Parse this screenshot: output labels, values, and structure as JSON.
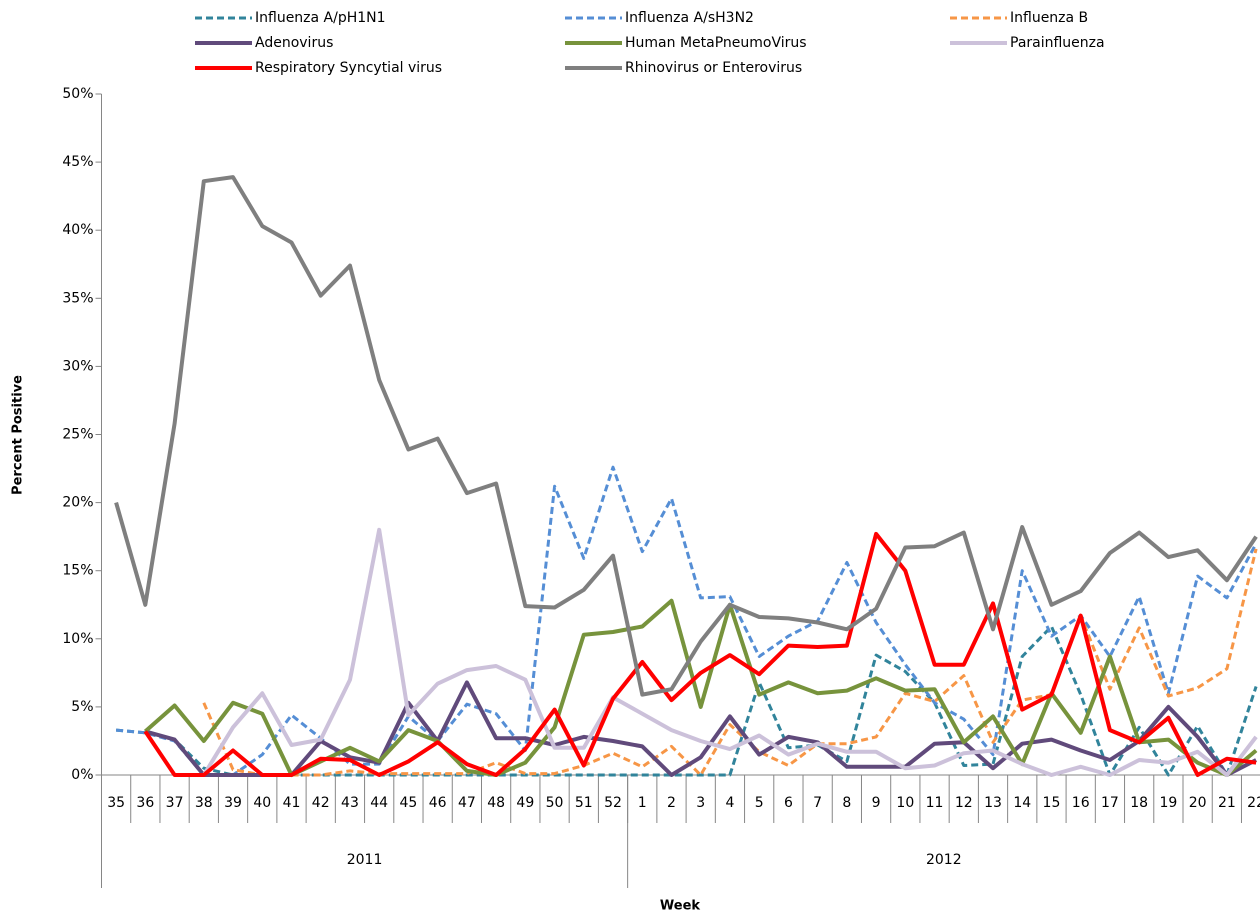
{
  "chart_data": {
    "type": "line",
    "y_axis_label": "Percent Positive",
    "x_axis_label": "Week",
    "categories": [
      "35",
      "36",
      "37",
      "38",
      "39",
      "40",
      "41",
      "42",
      "43",
      "44",
      "45",
      "46",
      "47",
      "48",
      "49",
      "50",
      "51",
      "52",
      "1",
      "2",
      "3",
      "4",
      "5",
      "6",
      "7",
      "8",
      "9",
      "10",
      "11",
      "12",
      "13",
      "14",
      "15",
      "16",
      "17",
      "18",
      "19",
      "20",
      "21",
      "22"
    ],
    "groups": [
      "2011",
      "2012"
    ],
    "ylim": [
      0,
      50
    ],
    "yticks": [
      {
        "value": 0,
        "label": "0%"
      },
      {
        "value": 5,
        "label": "5%"
      },
      {
        "value": 10,
        "label": "10%"
      },
      {
        "value": 15,
        "label": "15%"
      },
      {
        "value": 20,
        "label": "20%"
      },
      {
        "value": 25,
        "label": "25%"
      },
      {
        "value": 30,
        "label": "30%"
      },
      {
        "value": 35,
        "label": "35%"
      },
      {
        "value": 40,
        "label": "40%"
      },
      {
        "value": 45,
        "label": "45%"
      },
      {
        "value": 50,
        "label": "50%"
      }
    ],
    "series": [
      {
        "name": "Influenza A/pH1N1",
        "color": "#31849b",
        "dashed": true,
        "values": [
          3.3,
          3.1,
          2.6,
          0.5,
          0,
          0,
          0,
          0,
          0,
          0,
          0,
          0,
          0,
          0,
          0,
          0,
          0,
          0,
          0,
          0,
          0,
          0,
          6.8,
          2,
          2.2,
          1,
          8.8,
          7.6,
          5.3,
          0.7,
          0.8,
          8.7,
          10.9,
          5.9,
          0,
          3.5,
          0,
          3.6,
          0,
          6.5
        ]
      },
      {
        "name": "Influenza A/sH3N2",
        "color": "#558ed5",
        "dashed": true,
        "values": [
          3.3,
          3.1,
          2.5,
          0,
          0,
          1.5,
          4.4,
          2.7,
          0.8,
          0.8,
          4.3,
          2.5,
          5.2,
          4.5,
          1.8,
          21.2,
          15.9,
          22.6,
          16.4,
          20.3,
          13,
          13.1,
          8.7,
          10.2,
          11.3,
          15.6,
          11.2,
          8.1,
          5.3,
          4.1,
          1.5,
          15,
          10.2,
          11.7,
          8.7,
          13.1,
          6,
          14.6,
          13,
          17
        ]
      },
      {
        "name": "Influenza B",
        "color": "#f79646",
        "dashed": true,
        "values": [
          null,
          null,
          null,
          5.3,
          0.4,
          0,
          0,
          0,
          0.3,
          0.1,
          0.1,
          0.1,
          0.1,
          0.9,
          0.1,
          0.1,
          0.7,
          1.6,
          0.6,
          2.1,
          0,
          3.7,
          1.7,
          0.7,
          2.3,
          2.3,
          2.8,
          6,
          5.4,
          7.3,
          2.4,
          5.5,
          5.9,
          11.7,
          6.3,
          10.8,
          5.8,
          6.4,
          7.8,
          16.6
        ]
      },
      {
        "name": "Adenovirus",
        "color": "#604a7b",
        "dashed": false,
        "values": [
          null,
          3.2,
          2.6,
          0,
          0,
          0,
          0,
          2.5,
          1.3,
          0.9,
          5.3,
          2.5,
          6.8,
          2.7,
          2.7,
          2.2,
          2.8,
          2.5,
          2.1,
          0,
          1.3,
          4.3,
          1.5,
          2.8,
          2.4,
          0.6,
          0.6,
          0.6,
          2.3,
          2.4,
          0.5,
          2.3,
          2.6,
          1.8,
          1.1,
          2.5,
          5,
          2.8,
          0,
          1.1
        ]
      },
      {
        "name": "Human MetaPneumoVirus",
        "color": "#77933c",
        "dashed": false,
        "values": [
          null,
          3.2,
          5.1,
          2.5,
          5.3,
          4.5,
          0,
          1,
          2,
          1,
          3.3,
          2.5,
          0.3,
          0,
          0.9,
          3.5,
          10.3,
          10.5,
          10.9,
          12.8,
          5,
          12.5,
          5.9,
          6.8,
          6,
          6.2,
          7.1,
          6.2,
          6.3,
          2.4,
          4.3,
          0.8,
          6,
          3.1,
          8.7,
          2.4,
          2.6,
          0.9,
          0,
          1.8
        ]
      },
      {
        "name": "Parainfluenza",
        "color": "#ccc1da",
        "dashed": false,
        "values": [
          null,
          null,
          null,
          0,
          3.5,
          6,
          2.2,
          2.6,
          7,
          18,
          4.4,
          6.7,
          7.7,
          8,
          7,
          2,
          2,
          5.7,
          4.5,
          3.3,
          2.5,
          1.9,
          2.9,
          1.5,
          2.3,
          1.7,
          1.7,
          0.5,
          0.7,
          1.6,
          1.8,
          0.8,
          0,
          0.6,
          0,
          1.1,
          0.9,
          1.7,
          0,
          2.8
        ]
      },
      {
        "name": "Respiratory Syncytial virus",
        "color": "#ff0000",
        "dashed": false,
        "values": [
          null,
          3.2,
          0,
          0,
          1.8,
          0,
          0,
          1.2,
          1.1,
          0,
          1,
          2.4,
          0.8,
          0,
          1.9,
          4.8,
          0.7,
          5.6,
          8.3,
          5.5,
          7.5,
          8.8,
          7.4,
          9.5,
          9.4,
          9.5,
          17.7,
          15,
          8.1,
          8.1,
          12.6,
          4.8,
          5.9,
          11.7,
          3.3,
          2.4,
          4.2,
          0,
          1.2,
          0.9
        ]
      },
      {
        "name": "Rhinovirus or Enterovirus",
        "color": "#7f7f7f",
        "dashed": false,
        "values": [
          20,
          12.5,
          25.8,
          43.6,
          43.9,
          40.3,
          39.1,
          35.2,
          37.4,
          29,
          23.9,
          24.7,
          20.7,
          21.4,
          12.4,
          12.3,
          13.6,
          16.1,
          5.9,
          6.3,
          9.8,
          12.5,
          11.6,
          11.5,
          11.2,
          10.7,
          12.2,
          16.7,
          16.8,
          17.8,
          10.7,
          18.2,
          12.5,
          13.5,
          16.3,
          17.8,
          16,
          16.5,
          14.3,
          17.5
        ]
      }
    ]
  }
}
